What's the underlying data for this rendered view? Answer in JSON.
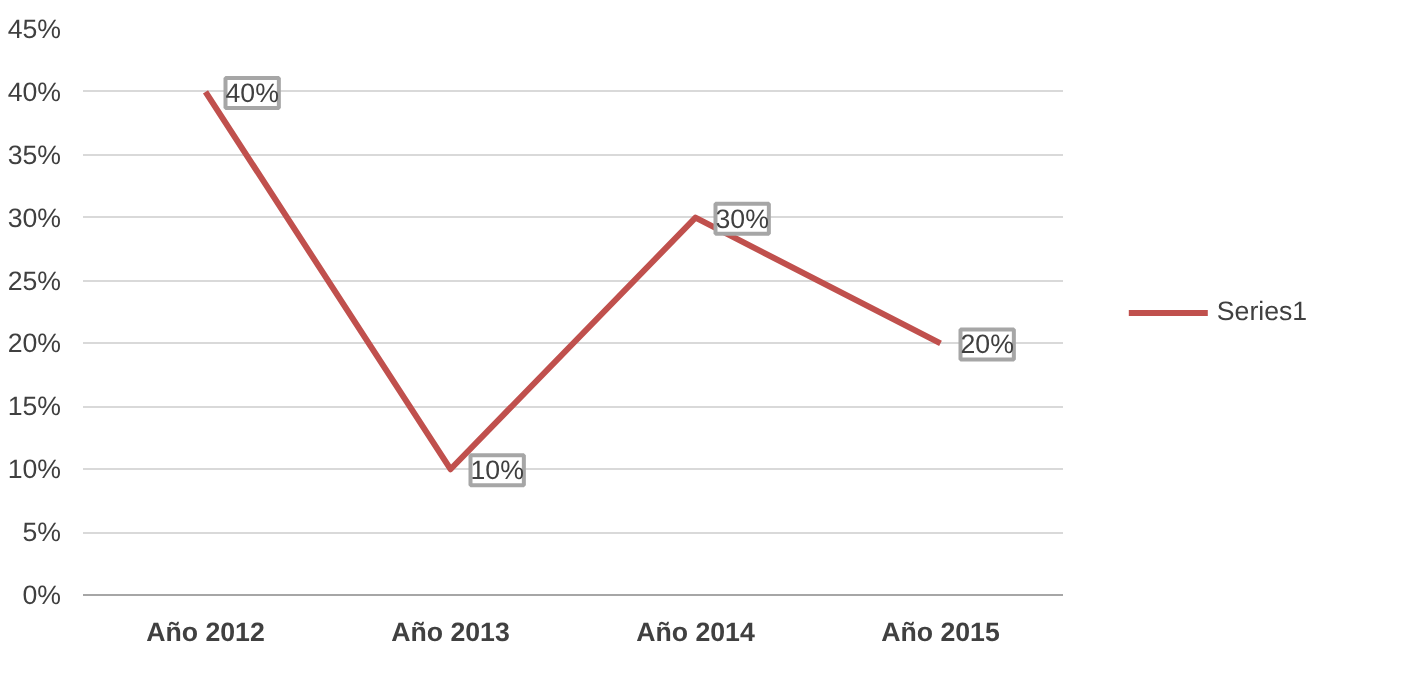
{
  "chart_data": {
    "type": "line",
    "categories": [
      "Año 2012",
      "Año 2013",
      "Año 2014",
      "Año 2015"
    ],
    "series": [
      {
        "name": "Series1",
        "color": "#c0504d",
        "values": [
          40,
          10,
          30,
          20
        ],
        "value_labels": [
          "40%",
          "10%",
          "30%",
          "20%"
        ]
      }
    ],
    "ylim": [
      0,
      45
    ],
    "yticks": [
      {
        "value": 0,
        "label": "0%"
      },
      {
        "value": 5,
        "label": "5%"
      },
      {
        "value": 10,
        "label": "10%"
      },
      {
        "value": 15,
        "label": "15%"
      },
      {
        "value": 20,
        "label": "20%"
      },
      {
        "value": 25,
        "label": "25%"
      },
      {
        "value": 30,
        "label": "30%"
      },
      {
        "value": 35,
        "label": "35%"
      },
      {
        "value": 40,
        "label": "40%"
      },
      {
        "value": 45,
        "label": "45%"
      }
    ],
    "grid": "y",
    "legend": "right",
    "marker": "none",
    "line_style": "solid"
  }
}
